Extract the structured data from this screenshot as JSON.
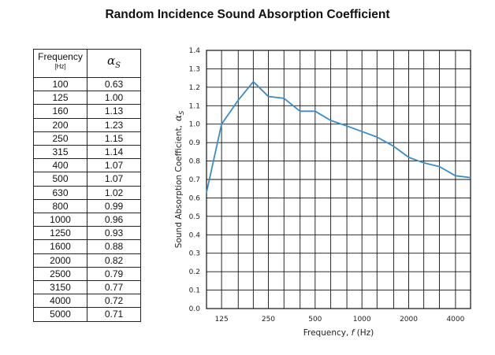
{
  "title": "Random Incidence Sound Absorption Coefficient",
  "table": {
    "header_frequency": "Frequency",
    "header_unit": "[Hz]",
    "header_alpha_symbol": "α",
    "header_alpha_sub": "S",
    "rows": [
      {
        "frequency": "100",
        "alpha": "0.63"
      },
      {
        "frequency": "125",
        "alpha": "1.00"
      },
      {
        "frequency": "160",
        "alpha": "1.13"
      },
      {
        "frequency": "200",
        "alpha": "1.23"
      },
      {
        "frequency": "250",
        "alpha": "1.15"
      },
      {
        "frequency": "315",
        "alpha": "1.14"
      },
      {
        "frequency": "400",
        "alpha": "1.07"
      },
      {
        "frequency": "500",
        "alpha": "1.07"
      },
      {
        "frequency": "630",
        "alpha": "1.02"
      },
      {
        "frequency": "800",
        "alpha": "0.99"
      },
      {
        "frequency": "1000",
        "alpha": "0.96"
      },
      {
        "frequency": "1250",
        "alpha": "0.93"
      },
      {
        "frequency": "1600",
        "alpha": "0.88"
      },
      {
        "frequency": "2000",
        "alpha": "0.82"
      },
      {
        "frequency": "2500",
        "alpha": "0.79"
      },
      {
        "frequency": "3150",
        "alpha": "0.77"
      },
      {
        "frequency": "4000",
        "alpha": "0.72"
      },
      {
        "frequency": "5000",
        "alpha": "0.71"
      }
    ]
  },
  "chart_data": {
    "type": "line",
    "x_scale": "log",
    "x": [
      100,
      125,
      160,
      200,
      250,
      315,
      400,
      500,
      630,
      800,
      1000,
      1250,
      1600,
      2000,
      2500,
      3150,
      4000,
      5000
    ],
    "series": [
      {
        "values": [
          0.63,
          1.0,
          1.13,
          1.23,
          1.15,
          1.14,
          1.07,
          1.07,
          1.02,
          0.99,
          0.96,
          0.93,
          0.88,
          0.82,
          0.79,
          0.77,
          0.72,
          0.71
        ],
        "color": "#3a8cc8"
      }
    ],
    "x_ticks": [
      125,
      250,
      500,
      1000,
      2000,
      4000
    ],
    "x_tick_labels": [
      "125",
      "250",
      "500",
      "1000",
      "2000",
      "4000"
    ],
    "y_ticks": [
      0.0,
      0.1,
      0.2,
      0.3,
      0.4,
      0.5,
      0.6,
      0.7,
      0.8,
      0.9,
      1.0,
      1.1,
      1.2,
      1.3,
      1.4
    ],
    "y_tick_labels": [
      "0.0",
      "0.1",
      "0.2",
      "0.3",
      "0.4",
      "0.5",
      "0.6",
      "0.7",
      "0.8",
      "0.9",
      "1.0",
      "1.1",
      "1.2",
      "1.3",
      "1.4"
    ],
    "ylim": [
      0.0,
      1.4
    ],
    "xlabel_prefix": "Frequency, ",
    "xlabel_var": "f",
    "xlabel_suffix": " (Hz)",
    "ylabel_prefix": "Sound Absorption Coefficient,",
    "ylabel_var": "α",
    "ylabel_sub": "S",
    "grid": true,
    "grid_color": "#111111"
  }
}
